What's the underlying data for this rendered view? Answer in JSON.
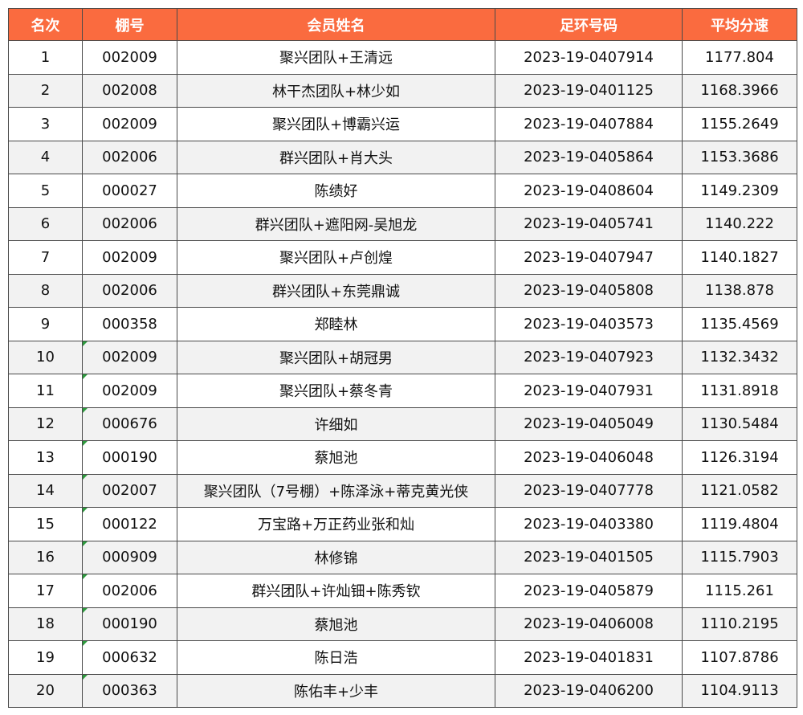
{
  "table": {
    "headers": {
      "rank": "名次",
      "loft": "棚号",
      "member": "会员姓名",
      "ring": "足环号码",
      "speed": "平均分速"
    },
    "header_color": "#fa6b3f",
    "stripe_color": "#f2f2f2",
    "marker_color": "#2e9b3e",
    "rows": [
      {
        "rank": "1",
        "loft": "002009",
        "member": "聚兴团队+王清远",
        "ring": "2023-19-0407914",
        "speed": "1177.804",
        "marked": false
      },
      {
        "rank": "2",
        "loft": "002008",
        "member": "林干杰团队+林少如",
        "ring": "2023-19-0401125",
        "speed": "1168.3966",
        "marked": false
      },
      {
        "rank": "3",
        "loft": "002009",
        "member": "聚兴团队+博霸兴运",
        "ring": "2023-19-0407884",
        "speed": "1155.2649",
        "marked": false
      },
      {
        "rank": "4",
        "loft": "002006",
        "member": "群兴团队+肖大头",
        "ring": "2023-19-0405864",
        "speed": "1153.3686",
        "marked": false
      },
      {
        "rank": "5",
        "loft": "000027",
        "member": "陈绩好",
        "ring": "2023-19-0408604",
        "speed": "1149.2309",
        "marked": false
      },
      {
        "rank": "6",
        "loft": "002006",
        "member": "群兴团队+遮阳网-吴旭龙",
        "ring": "2023-19-0405741",
        "speed": "1140.222",
        "marked": false
      },
      {
        "rank": "7",
        "loft": "002009",
        "member": "聚兴团队+卢创煌",
        "ring": "2023-19-0407947",
        "speed": "1140.1827",
        "marked": false
      },
      {
        "rank": "8",
        "loft": "002006",
        "member": "群兴团队+东莞鼎诚",
        "ring": "2023-19-0405808",
        "speed": "1138.878",
        "marked": false
      },
      {
        "rank": "9",
        "loft": "000358",
        "member": "郑睦林",
        "ring": "2023-19-0403573",
        "speed": "1135.4569",
        "marked": false
      },
      {
        "rank": "10",
        "loft": "002009",
        "member": "聚兴团队+胡冠男",
        "ring": "2023-19-0407923",
        "speed": "1132.3432",
        "marked": true
      },
      {
        "rank": "11",
        "loft": "002009",
        "member": "聚兴团队+蔡冬青",
        "ring": "2023-19-0407931",
        "speed": "1131.8918",
        "marked": true
      },
      {
        "rank": "12",
        "loft": "000676",
        "member": "许细如",
        "ring": "2023-19-0405049",
        "speed": "1130.5484",
        "marked": true
      },
      {
        "rank": "13",
        "loft": "000190",
        "member": "蔡旭池",
        "ring": "2023-19-0406048",
        "speed": "1126.3194",
        "marked": true
      },
      {
        "rank": "14",
        "loft": "002007",
        "member": "聚兴团队（7号棚）+陈泽泳+蒂克黄光侠",
        "ring": "2023-19-0407778",
        "speed": "1121.0582",
        "marked": true
      },
      {
        "rank": "15",
        "loft": "000122",
        "member": "万宝路+万正药业张和灿",
        "ring": "2023-19-0403380",
        "speed": "1119.4804",
        "marked": true
      },
      {
        "rank": "16",
        "loft": "000909",
        "member": "林修锦",
        "ring": "2023-19-0401505",
        "speed": "1115.7903",
        "marked": true
      },
      {
        "rank": "17",
        "loft": "002006",
        "member": "群兴团队+许灿钿+陈秀钦",
        "ring": "2023-19-0405879",
        "speed": "1115.261",
        "marked": true
      },
      {
        "rank": "18",
        "loft": "000190",
        "member": "蔡旭池",
        "ring": "2023-19-0406008",
        "speed": "1110.2195",
        "marked": true
      },
      {
        "rank": "19",
        "loft": "000632",
        "member": "陈日浩",
        "ring": "2023-19-0401831",
        "speed": "1107.8786",
        "marked": true
      },
      {
        "rank": "20",
        "loft": "000363",
        "member": "陈佑丰+少丰",
        "ring": "2023-19-0406200",
        "speed": "1104.9113",
        "marked": true
      }
    ]
  }
}
